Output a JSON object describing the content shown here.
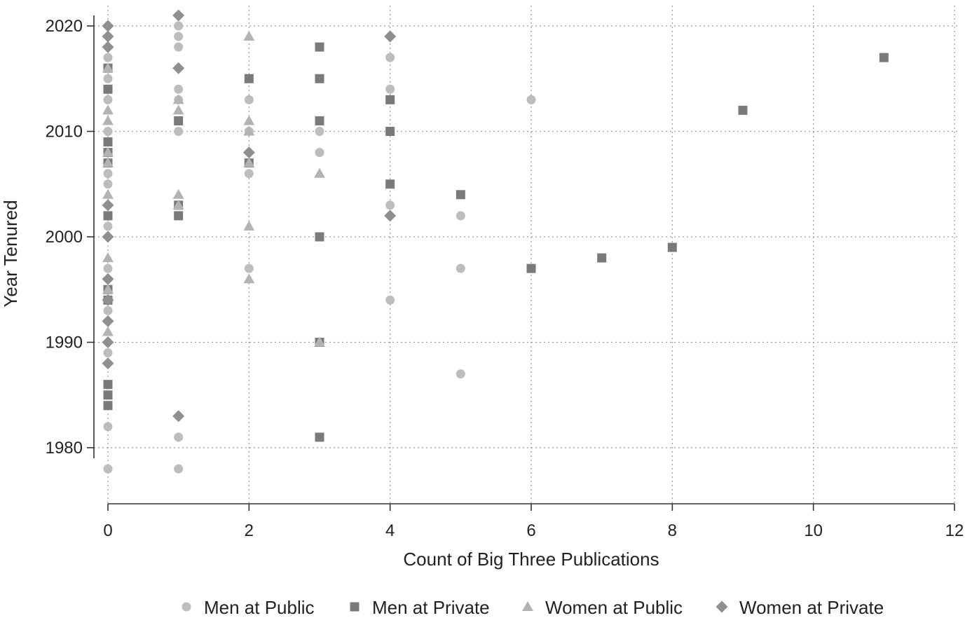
{
  "chart_data": {
    "type": "scatter",
    "xlabel": "Count of Big Three Publications",
    "ylabel": "Year Tenured",
    "xlim": [
      0,
      12
    ],
    "ylim": [
      1980,
      2020
    ],
    "x_ticks": [
      0,
      2,
      4,
      6,
      8,
      10,
      12
    ],
    "y_ticks": [
      1980,
      1990,
      2000,
      2010,
      2020
    ],
    "grid": true,
    "legend_position": "bottom",
    "series": [
      {
        "name": "Men at Public",
        "marker": "circle",
        "color": "#bdbdbd",
        "points": [
          [
            0,
            2017
          ],
          [
            0,
            2015
          ],
          [
            0,
            2013
          ],
          [
            0,
            2010
          ],
          [
            0,
            2006
          ],
          [
            0,
            2005
          ],
          [
            0,
            2001
          ],
          [
            0,
            1997
          ],
          [
            0,
            1993
          ],
          [
            0,
            1989
          ],
          [
            0,
            1982
          ],
          [
            0,
            1978
          ],
          [
            1,
            2020
          ],
          [
            1,
            2019
          ],
          [
            1,
            2018
          ],
          [
            1,
            2014
          ],
          [
            1,
            2013
          ],
          [
            1,
            2010
          ],
          [
            1,
            1981
          ],
          [
            1,
            1978
          ],
          [
            2,
            2013
          ],
          [
            2,
            2010
          ],
          [
            2,
            2006
          ],
          [
            2,
            1997
          ],
          [
            3,
            2010
          ],
          [
            3,
            2008
          ],
          [
            4,
            2017
          ],
          [
            4,
            2014
          ],
          [
            4,
            2003
          ],
          [
            4,
            1994
          ],
          [
            5,
            2002
          ],
          [
            5,
            1997
          ],
          [
            5,
            1987
          ],
          [
            6,
            2013
          ]
        ]
      },
      {
        "name": "Men at Private",
        "marker": "square",
        "color": "#7a7a7a",
        "points": [
          [
            0,
            2016
          ],
          [
            0,
            2014
          ],
          [
            0,
            2009
          ],
          [
            0,
            2008
          ],
          [
            0,
            2007
          ],
          [
            0,
            2002
          ],
          [
            0,
            1995
          ],
          [
            0,
            1994
          ],
          [
            0,
            1986
          ],
          [
            0,
            1985
          ],
          [
            0,
            1984
          ],
          [
            1,
            2011
          ],
          [
            1,
            2003
          ],
          [
            1,
            2002
          ],
          [
            2,
            2015
          ],
          [
            2,
            2007
          ],
          [
            3,
            2018
          ],
          [
            3,
            2015
          ],
          [
            3,
            2011
          ],
          [
            3,
            2000
          ],
          [
            3,
            1990
          ],
          [
            3,
            1981
          ],
          [
            4,
            2013
          ],
          [
            4,
            2010
          ],
          [
            4,
            2005
          ],
          [
            5,
            2004
          ],
          [
            6,
            1997
          ],
          [
            7,
            1998
          ],
          [
            8,
            1999
          ],
          [
            9,
            2012
          ],
          [
            11,
            2017
          ]
        ]
      },
      {
        "name": "Women at Public",
        "marker": "triangle",
        "color": "#b3b3b3",
        "points": [
          [
            0,
            2016
          ],
          [
            0,
            2012
          ],
          [
            0,
            2011
          ],
          [
            0,
            2008
          ],
          [
            0,
            2007
          ],
          [
            0,
            2004
          ],
          [
            0,
            1998
          ],
          [
            0,
            1995
          ],
          [
            0,
            1991
          ],
          [
            1,
            2013
          ],
          [
            1,
            2012
          ],
          [
            1,
            2004
          ],
          [
            1,
            2003
          ],
          [
            2,
            2019
          ],
          [
            2,
            2011
          ],
          [
            2,
            2010
          ],
          [
            2,
            2007
          ],
          [
            2,
            2001
          ],
          [
            2,
            1996
          ],
          [
            3,
            2006
          ],
          [
            3,
            1990
          ]
        ]
      },
      {
        "name": "Women at Private",
        "marker": "diamond",
        "color": "#8f8f8f",
        "points": [
          [
            0,
            2020
          ],
          [
            0,
            2019
          ],
          [
            0,
            2018
          ],
          [
            0,
            2003
          ],
          [
            0,
            2000
          ],
          [
            0,
            1996
          ],
          [
            0,
            1994
          ],
          [
            0,
            1992
          ],
          [
            0,
            1990
          ],
          [
            0,
            1988
          ],
          [
            1,
            2021
          ],
          [
            1,
            2016
          ],
          [
            1,
            1983
          ],
          [
            2,
            2008
          ],
          [
            4,
            2019
          ],
          [
            4,
            2002
          ]
        ]
      }
    ]
  }
}
